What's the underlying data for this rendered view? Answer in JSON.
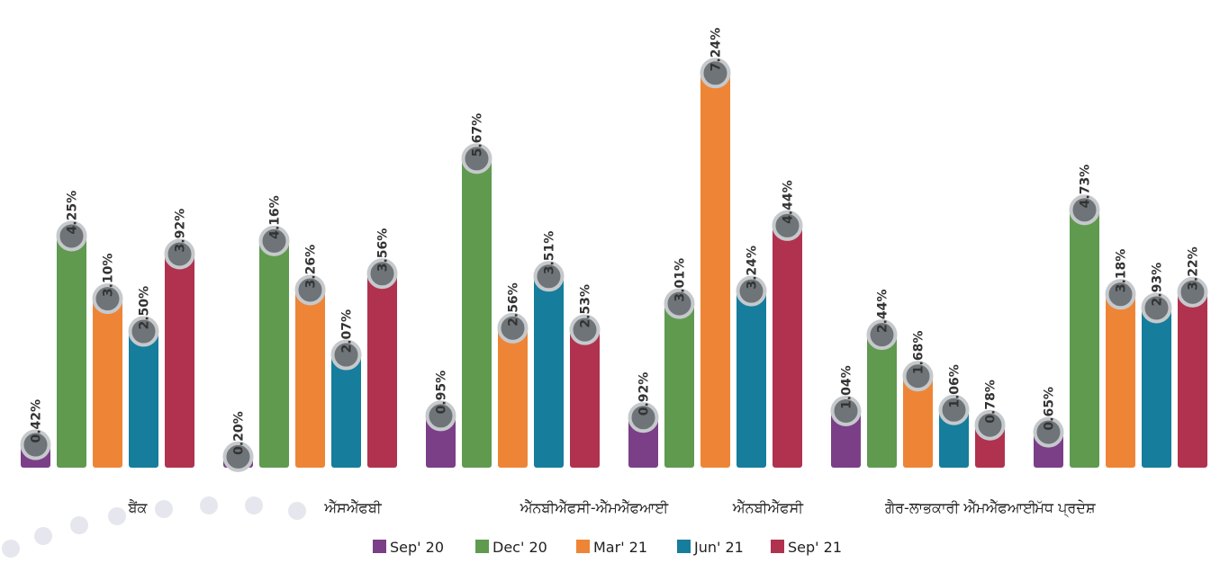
{
  "chart_data": {
    "type": "bar",
    "categories": [
      "ਬੈਂਕ",
      "ਐੱਸਐੱਫਬੀ",
      "ਐੱਨਬੀਐੱਫਸੀ-ਐੱਮਐੱਫਆਈ",
      "ਐੱਨਬੀਐੱਫਸੀ",
      "ਗੈਰ-ਲਾਭਕਾਰੀ ਐੱਮਐੱਫਆਈ",
      "ਮੱਧ ਪ੍ਰਦੇਸ਼"
    ],
    "series": [
      {
        "name": "Sep' 20",
        "color": "#7b3f87",
        "values": [
          0.42,
          0.2,
          0.95,
          0.92,
          1.04,
          0.65
        ],
        "labels": [
          "0.42%",
          "0.20%",
          "0.95%",
          "0.92%",
          "1.04%",
          "0.65%"
        ]
      },
      {
        "name": "Dec' 20",
        "color": "#5f9a4f",
        "values": [
          4.25,
          4.16,
          5.67,
          3.01,
          2.44,
          4.73
        ],
        "labels": [
          "4.25%",
          "4.16%",
          "5.67%",
          "3.01%",
          "2.44%",
          "4.73%"
        ]
      },
      {
        "name": "Mar' 21",
        "color": "#ee8536",
        "values": [
          3.1,
          3.26,
          2.56,
          7.24,
          1.68,
          3.18
        ],
        "labels": [
          "3.10%",
          "3.26%",
          "2.56%",
          "7.24%",
          "1.68%",
          "3.18%"
        ]
      },
      {
        "name": "Jun' 21",
        "color": "#167d9c",
        "values": [
          2.5,
          2.07,
          3.51,
          3.24,
          1.06,
          2.93
        ],
        "labels": [
          "2.50%",
          "2.07%",
          "3.51%",
          "3.24%",
          "1.06%",
          "2.93%"
        ]
      },
      {
        "name": "Sep' 21",
        "color": "#b0324f",
        "values": [
          3.92,
          3.56,
          2.53,
          4.44,
          0.78,
          3.22
        ],
        "labels": [
          "3.92%",
          "3.56%",
          "2.53%",
          "4.44%",
          "0.78%",
          "3.22%"
        ]
      }
    ],
    "ylim": [
      0,
      8
    ],
    "grid": false,
    "legend_position": "bottom",
    "title": "",
    "xlabel": "",
    "ylabel": ""
  }
}
